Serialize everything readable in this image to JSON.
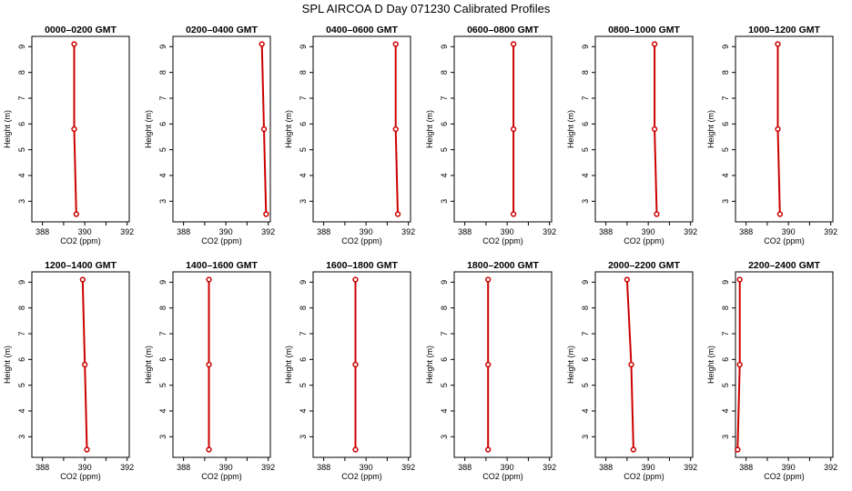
{
  "title": "SPL AIRCOA D  Day 071230  Calibrated Profiles",
  "colors": {
    "profile": "#cc0000",
    "axis": "#000000"
  },
  "chart_data": {
    "type": "line",
    "xlabel": "CO2 (ppm)",
    "ylabel": "Height (m)",
    "xlim": [
      387.5,
      392.1
    ],
    "ylim": [
      2.2,
      9.4
    ],
    "xticks": [
      388,
      390,
      392
    ],
    "xticks_minor": [
      389,
      391
    ],
    "yticks": [
      3,
      4,
      5,
      6,
      7,
      8,
      9
    ],
    "panels": [
      {
        "title": "0000–0200 GMT",
        "points": [
          {
            "x": 389.5,
            "y": 9.1
          },
          {
            "x": 389.5,
            "y": 5.8
          },
          {
            "x": 389.6,
            "y": 2.5
          }
        ]
      },
      {
        "title": "0200–0400 GMT",
        "points": [
          {
            "x": 391.7,
            "y": 9.1
          },
          {
            "x": 391.8,
            "y": 5.8
          },
          {
            "x": 391.9,
            "y": 2.5
          }
        ]
      },
      {
        "title": "0400–0600 GMT",
        "points": [
          {
            "x": 391.4,
            "y": 9.1
          },
          {
            "x": 391.4,
            "y": 5.8
          },
          {
            "x": 391.5,
            "y": 2.5
          }
        ]
      },
      {
        "title": "0600–0800 GMT",
        "points": [
          {
            "x": 390.3,
            "y": 9.1
          },
          {
            "x": 390.3,
            "y": 5.8
          },
          {
            "x": 390.3,
            "y": 2.5
          }
        ]
      },
      {
        "title": "0800–1000 GMT",
        "points": [
          {
            "x": 390.3,
            "y": 9.1
          },
          {
            "x": 390.3,
            "y": 5.8
          },
          {
            "x": 390.4,
            "y": 2.5
          }
        ]
      },
      {
        "title": "1000–1200 GMT",
        "points": [
          {
            "x": 389.5,
            "y": 9.1
          },
          {
            "x": 389.5,
            "y": 5.8
          },
          {
            "x": 389.6,
            "y": 2.5
          }
        ]
      },
      {
        "title": "1200–1400 GMT",
        "points": [
          {
            "x": 389.9,
            "y": 9.1
          },
          {
            "x": 390.0,
            "y": 5.8
          },
          {
            "x": 390.1,
            "y": 2.5
          }
        ]
      },
      {
        "title": "1400–1600 GMT",
        "points": [
          {
            "x": 389.2,
            "y": 9.1
          },
          {
            "x": 389.2,
            "y": 5.8
          },
          {
            "x": 389.2,
            "y": 2.5
          }
        ]
      },
      {
        "title": "1600–1800 GMT",
        "points": [
          {
            "x": 389.5,
            "y": 9.1
          },
          {
            "x": 389.5,
            "y": 5.8
          },
          {
            "x": 389.5,
            "y": 2.5
          }
        ]
      },
      {
        "title": "1800–2000 GMT",
        "points": [
          {
            "x": 389.1,
            "y": 9.1
          },
          {
            "x": 389.1,
            "y": 5.8
          },
          {
            "x": 389.1,
            "y": 2.5
          }
        ]
      },
      {
        "title": "2000–2200 GMT",
        "points": [
          {
            "x": 389.0,
            "y": 9.1
          },
          {
            "x": 389.2,
            "y": 5.8
          },
          {
            "x": 389.3,
            "y": 2.5
          }
        ]
      },
      {
        "title": "2200–2400 GMT",
        "points": [
          {
            "x": 387.7,
            "y": 9.1
          },
          {
            "x": 387.7,
            "y": 5.8
          },
          {
            "x": 387.6,
            "y": 2.5
          }
        ]
      }
    ]
  }
}
